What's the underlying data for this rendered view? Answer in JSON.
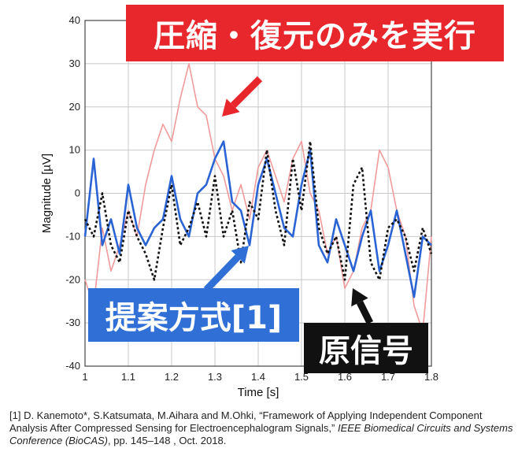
{
  "chart_data": {
    "type": "line",
    "xlabel": "Time [s]",
    "ylabel": "Magnitude [µV]",
    "xlim": [
      1.0,
      1.8
    ],
    "ylim": [
      -40,
      40
    ],
    "xticks": [
      "1",
      "1.1",
      "1.2",
      "1.3",
      "1.4",
      "1.5",
      "1.6",
      "1.7",
      "1.8"
    ],
    "yticks": [
      "-40",
      "-30",
      "-20",
      "-10",
      "0",
      "10",
      "20",
      "30",
      "40"
    ],
    "grid": true,
    "series": [
      {
        "name": "圧縮・復元のみを実行",
        "color": "#f19a9a",
        "x": [
          1.0,
          1.02,
          1.04,
          1.06,
          1.08,
          1.1,
          1.12,
          1.14,
          1.16,
          1.18,
          1.2,
          1.22,
          1.24,
          1.26,
          1.28,
          1.3,
          1.32,
          1.34,
          1.36,
          1.38,
          1.4,
          1.42,
          1.44,
          1.46,
          1.48,
          1.5,
          1.52,
          1.54,
          1.56,
          1.58,
          1.6,
          1.62,
          1.64,
          1.66,
          1.68,
          1.7,
          1.72,
          1.74,
          1.76,
          1.78,
          1.8
        ],
        "y": [
          -20,
          -26,
          -8,
          -18,
          -12,
          -4,
          -10,
          2,
          10,
          16,
          12,
          22,
          30,
          20,
          18,
          8,
          4,
          -4,
          2,
          -6,
          6,
          10,
          4,
          -2,
          8,
          12,
          0,
          -4,
          -14,
          -10,
          -22,
          -18,
          -8,
          -4,
          10,
          6,
          -4,
          -10,
          -26,
          -32,
          -10
        ]
      },
      {
        "name": "提案方式[1]",
        "color": "#2a63d4",
        "x": [
          1.0,
          1.02,
          1.04,
          1.06,
          1.08,
          1.1,
          1.12,
          1.14,
          1.16,
          1.18,
          1.2,
          1.22,
          1.24,
          1.26,
          1.28,
          1.3,
          1.32,
          1.34,
          1.36,
          1.38,
          1.4,
          1.42,
          1.44,
          1.46,
          1.48,
          1.5,
          1.52,
          1.54,
          1.56,
          1.58,
          1.6,
          1.62,
          1.64,
          1.66,
          1.68,
          1.7,
          1.72,
          1.74,
          1.76,
          1.78,
          1.8
        ],
        "y": [
          -10,
          8,
          -12,
          -6,
          -14,
          2,
          -8,
          -12,
          -8,
          -6,
          4,
          -6,
          -10,
          0,
          2,
          8,
          12,
          -2,
          -4,
          -12,
          2,
          8,
          0,
          -8,
          -10,
          2,
          10,
          -12,
          -16,
          -6,
          -12,
          -18,
          -10,
          -4,
          -18,
          -12,
          -4,
          -14,
          -24,
          -10,
          -12
        ]
      },
      {
        "name": "原信号",
        "color": "#111111",
        "x": [
          1.0,
          1.02,
          1.04,
          1.06,
          1.08,
          1.1,
          1.12,
          1.14,
          1.16,
          1.18,
          1.2,
          1.22,
          1.24,
          1.26,
          1.28,
          1.3,
          1.32,
          1.34,
          1.36,
          1.38,
          1.4,
          1.42,
          1.44,
          1.46,
          1.48,
          1.5,
          1.52,
          1.54,
          1.56,
          1.58,
          1.6,
          1.62,
          1.64,
          1.66,
          1.68,
          1.7,
          1.72,
          1.74,
          1.76,
          1.78,
          1.8
        ],
        "y": [
          -6,
          -10,
          0,
          -12,
          -16,
          -4,
          -10,
          -14,
          -20,
          -8,
          2,
          -12,
          -8,
          -2,
          -10,
          4,
          -10,
          -4,
          -16,
          -2,
          -6,
          10,
          -4,
          -12,
          8,
          -4,
          12,
          -8,
          -14,
          -10,
          -20,
          2,
          6,
          -16,
          -20,
          -8,
          -6,
          -10,
          -18,
          -8,
          -14
        ]
      }
    ]
  },
  "annotations": {
    "red_label": "圧縮・復元のみを実行",
    "blue_label": "提案方式[1]",
    "black_label": "原信号",
    "red_color": "#e8272d",
    "blue_color": "#2f6fd6",
    "black_color": "#111111"
  },
  "citation": {
    "prefix": "[1] D. Kanemoto*, S.Katsumata, M.Aihara and M.Ohki, “Framework of Applying Independent Component Analysis After Compressed Sensing for Electroencephalogram Signals,”",
    "venue": "IEEE Biomedical Circuits and Systems Conference (BioCAS)",
    "suffix": ", pp. 145–148 , Oct. 2018."
  }
}
